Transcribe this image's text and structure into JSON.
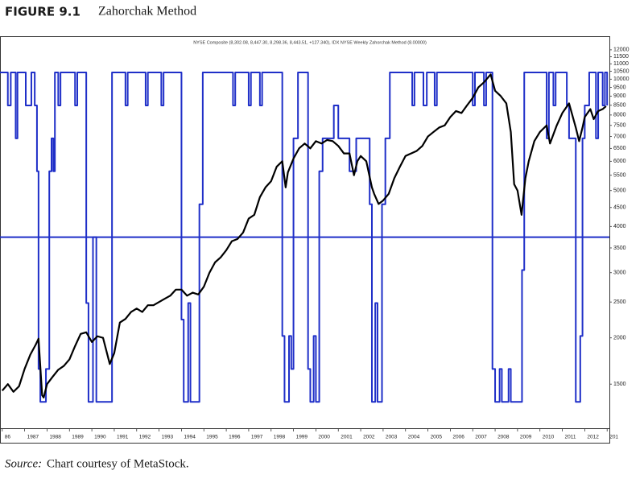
{
  "figure_label": "FIGURE 9.1",
  "source_label": "Source:",
  "source_text": "Chart courtesy of MetaStock.",
  "chart_data": {
    "type": "line",
    "title": "Zahorchak Method",
    "subtitle": "NYSE Composite (8,302.08, 8,447.30, 8,298.36, 8,443.51, +127.340), IDX NYSE Weekly Zahorchak Method (8.00000)",
    "log_y": true,
    "xlim": [
      1985.9,
      2013.1
    ],
    "xticks": [
      {
        "value": 1986,
        "label": "86"
      },
      1987,
      1988,
      1989,
      1990,
      1991,
      1992,
      1993,
      1994,
      1995,
      1996,
      1997,
      1998,
      1999,
      2000,
      2001,
      2002,
      2003,
      2004,
      2005,
      2006,
      2007,
      2008,
      2009,
      2010,
      2011,
      2012,
      {
        "value": 2013,
        "label": "201"
      }
    ],
    "ylim": [
      1140,
      13060
    ],
    "yticks": [
      12000,
      11500,
      11000,
      10500,
      10000,
      9500,
      9000,
      8500,
      8000,
      7500,
      7000,
      6500,
      6000,
      5500,
      5000,
      4500,
      4000,
      3500,
      3000,
      2500,
      2000,
      1500
    ],
    "y2lim": [
      -11.6,
      12.2
    ],
    "reference_lines": [
      {
        "axis": "y2",
        "value": 0,
        "color": "#1f2fc8"
      }
    ],
    "series": [
      {
        "color": "#000000",
        "step": false,
        "x": [
          1986.0,
          1986.25,
          1986.5,
          1986.75,
          1987.0,
          1987.25,
          1987.5,
          1987.62,
          1987.78,
          1987.85,
          1988.0,
          1988.25,
          1988.5,
          1988.75,
          1989.0,
          1989.25,
          1989.5,
          1989.75,
          1990.0,
          1990.25,
          1990.5,
          1990.8,
          1991.0,
          1991.25,
          1991.5,
          1991.75,
          1992.0,
          1992.25,
          1992.5,
          1992.75,
          1993.0,
          1993.25,
          1993.5,
          1993.75,
          1994.0,
          1994.25,
          1994.5,
          1994.75,
          1995.0,
          1995.25,
          1995.5,
          1995.75,
          1996.0,
          1996.25,
          1996.5,
          1996.75,
          1997.0,
          1997.25,
          1997.5,
          1997.75,
          1998.0,
          1998.25,
          1998.5,
          1998.65,
          1998.75,
          1999.0,
          1999.25,
          1999.5,
          1999.75,
          2000.0,
          2000.25,
          2000.5,
          2000.75,
          2001.0,
          2001.25,
          2001.5,
          2001.7,
          2001.85,
          2002.0,
          2002.25,
          2002.5,
          2002.6,
          2002.8,
          2003.0,
          2003.25,
          2003.5,
          2003.75,
          2004.0,
          2004.25,
          2004.5,
          2004.75,
          2005.0,
          2005.25,
          2005.5,
          2005.75,
          2006.0,
          2006.25,
          2006.5,
          2006.75,
          2007.0,
          2007.25,
          2007.5,
          2007.8,
          2008.0,
          2008.25,
          2008.5,
          2008.7,
          2008.85,
          2009.0,
          2009.18,
          2009.35,
          2009.5,
          2009.75,
          2010.0,
          2010.3,
          2010.45,
          2010.75,
          2011.0,
          2011.3,
          2011.6,
          2011.75,
          2011.9,
          2012.0,
          2012.25,
          2012.4,
          2012.6,
          2012.8,
          2012.95
        ],
        "values": [
          1440,
          1500,
          1430,
          1480,
          1650,
          1800,
          1920,
          1990,
          1400,
          1380,
          1500,
          1570,
          1640,
          1680,
          1750,
          1900,
          2050,
          2070,
          1950,
          2020,
          2000,
          1700,
          1820,
          2200,
          2250,
          2350,
          2400,
          2350,
          2450,
          2450,
          2500,
          2550,
          2600,
          2700,
          2700,
          2600,
          2650,
          2620,
          2750,
          3000,
          3200,
          3300,
          3450,
          3650,
          3700,
          3850,
          4200,
          4300,
          4800,
          5100,
          5300,
          5800,
          6000,
          5100,
          5600,
          6100,
          6500,
          6700,
          6500,
          6800,
          6700,
          6850,
          6800,
          6600,
          6300,
          6300,
          5500,
          6000,
          6200,
          6000,
          5100,
          4900,
          4600,
          4700,
          4900,
          5400,
          5800,
          6200,
          6300,
          6400,
          6600,
          7000,
          7200,
          7400,
          7500,
          7900,
          8200,
          8100,
          8500,
          8900,
          9500,
          9800,
          10300,
          9300,
          9000,
          8600,
          7200,
          5200,
          5000,
          4300,
          5400,
          6000,
          6800,
          7200,
          7500,
          6700,
          7500,
          8100,
          8600,
          7400,
          6800,
          7400,
          7900,
          8300,
          7800,
          8200,
          8300,
          8450
        ]
      },
      {
        "color": "#1f2fc8",
        "axis": "y2",
        "step": true,
        "x": [
          1985.9,
          1986.25,
          1986.38,
          1986.6,
          1986.68,
          1987.05,
          1987.3,
          1987.45,
          1987.55,
          1987.62,
          1987.7,
          1987.95,
          1988.1,
          1988.2,
          1988.28,
          1988.35,
          1988.5,
          1988.6,
          1989.25,
          1989.35,
          1989.75,
          1989.85,
          1990.05,
          1990.2,
          1990.9,
          1991.5,
          1991.6,
          1992.4,
          1992.5,
          1993.1,
          1993.2,
          1994.0,
          1994.1,
          1994.3,
          1994.4,
          1994.8,
          1994.95,
          1996.3,
          1996.4,
          1997.0,
          1997.1,
          1997.5,
          1997.6,
          1998.5,
          1998.6,
          1998.8,
          1998.9,
          1999.0,
          1999.2,
          1999.65,
          1999.75,
          1999.9,
          2000.0,
          2000.15,
          2000.3,
          2000.8,
          2001.0,
          2001.5,
          2001.8,
          2002.4,
          2002.5,
          2002.65,
          2002.75,
          2002.95,
          2003.1,
          2003.3,
          2004.3,
          2004.4,
          2004.8,
          2004.95,
          2005.3,
          2005.4,
          2007.0,
          2007.1,
          2007.5,
          2007.6,
          2007.88,
          2008.0,
          2008.2,
          2008.3,
          2008.6,
          2008.7,
          2009.2,
          2009.3,
          2010.3,
          2010.4,
          2010.6,
          2010.7,
          2011.2,
          2011.3,
          2011.6,
          2011.8,
          2011.9,
          2012.0,
          2012.2,
          2012.5,
          2012.6,
          2012.8,
          2012.9,
          2013.0
        ],
        "values": [
          10,
          8,
          10,
          6,
          10,
          8,
          10,
          8,
          4,
          -8,
          -10,
          -8,
          4,
          6,
          4,
          10,
          8,
          10,
          8,
          10,
          -4,
          -10,
          0,
          -10,
          10,
          8,
          10,
          8,
          10,
          8,
          10,
          -5,
          -10,
          -4,
          -10,
          2,
          10,
          8,
          10,
          8,
          10,
          8,
          10,
          -6,
          -10,
          -6,
          -8,
          6,
          10,
          -8,
          -10,
          -6,
          -10,
          4,
          6,
          8,
          6,
          4,
          6,
          2,
          -10,
          -4,
          -10,
          2,
          6,
          10,
          8,
          10,
          8,
          10,
          8,
          10,
          8,
          10,
          8,
          10,
          -8,
          -10,
          -8,
          -10,
          -8,
          -10,
          -2,
          10,
          6,
          10,
          8,
          10,
          8,
          6,
          -10,
          -6,
          6,
          8,
          10,
          6,
          10,
          8,
          10,
          8
        ]
      }
    ]
  }
}
